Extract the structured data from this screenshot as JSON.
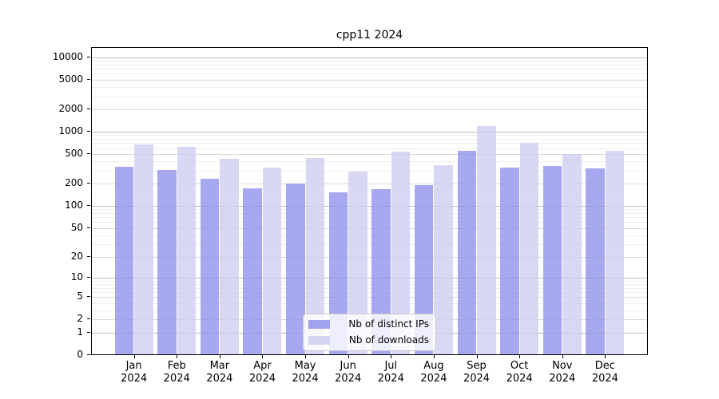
{
  "chart_data": {
    "type": "bar",
    "title": "cpp11 2024",
    "x_months": [
      "Jan",
      "Feb",
      "Mar",
      "Apr",
      "May",
      "Jun",
      "Jul",
      "Aug",
      "Sep",
      "Oct",
      "Nov",
      "Dec"
    ],
    "x_year": "2024",
    "series": [
      {
        "name": "Nb of distinct IPs",
        "color": "#9292ec",
        "values": [
          330,
          300,
          225,
          170,
          195,
          150,
          163,
          185,
          545,
          320,
          335,
          315
        ]
      },
      {
        "name": "Nb of downloads",
        "color": "#cecef1",
        "values": [
          655,
          615,
          425,
          320,
          435,
          285,
          525,
          350,
          1150,
          690,
          490,
          535
        ]
      }
    ],
    "y_ticks": [
      0,
      1,
      2,
      5,
      10,
      20,
      50,
      100,
      200,
      500,
      1000,
      2000,
      5000,
      10000
    ],
    "y_scale": "log10(value+1)",
    "ylim": [
      0,
      12800
    ],
    "grid": true,
    "legend_position": "lower center",
    "grid_colors": {
      "power10": "#bdbdbd",
      "major": "#d9d9d9",
      "minor": "#eeeeee"
    }
  }
}
